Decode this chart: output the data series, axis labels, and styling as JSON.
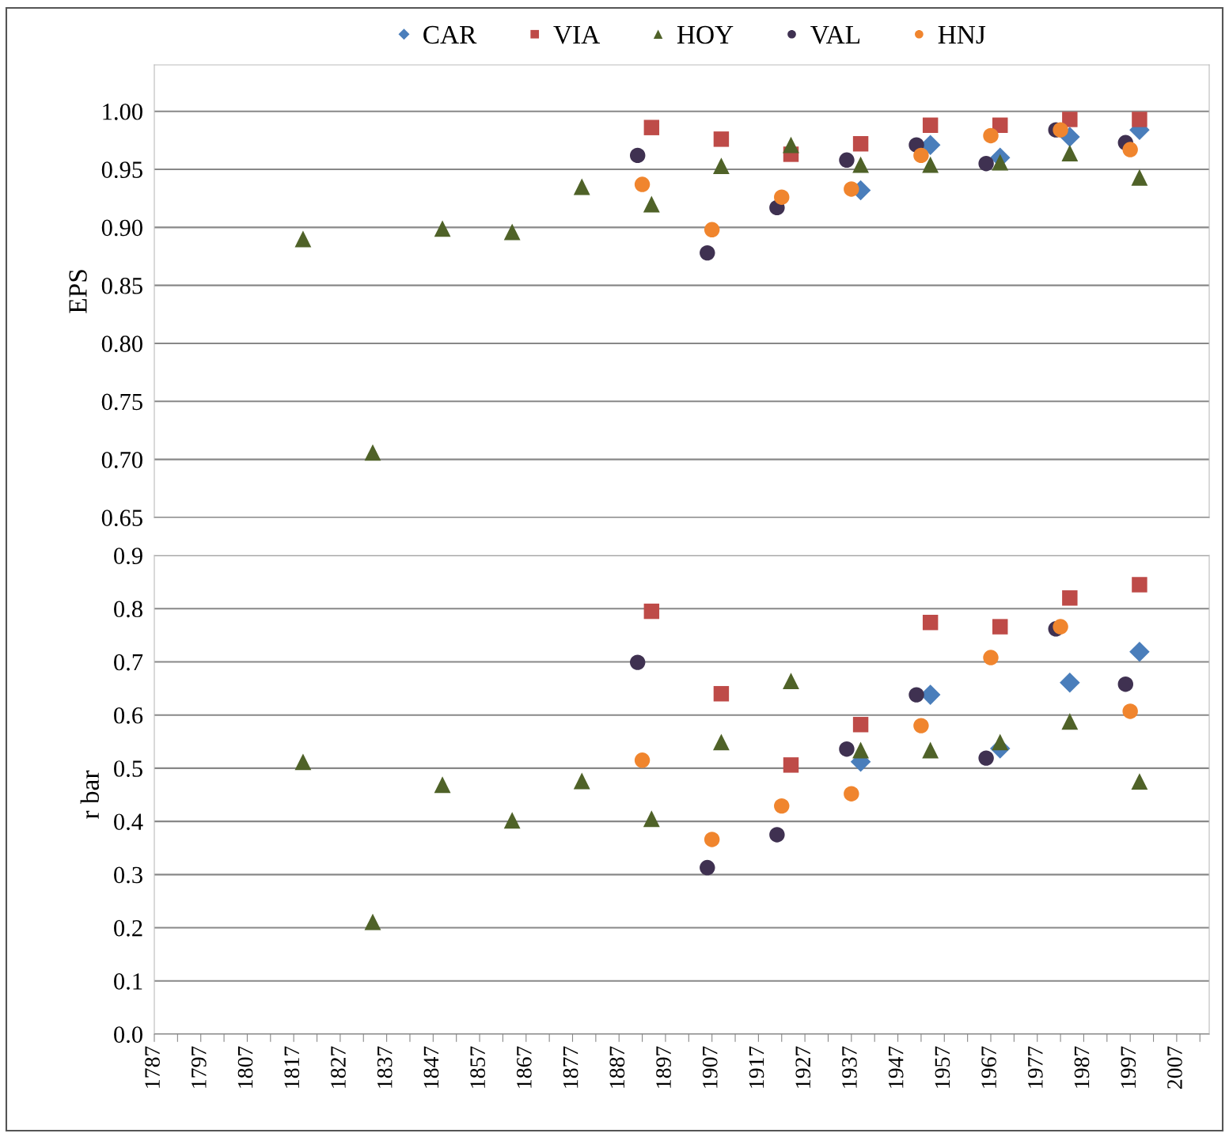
{
  "chart_data": [
    {
      "type": "scatter",
      "ylabel": "EPS",
      "xlim": [
        1787,
        2014
      ],
      "ylim": [
        0.65,
        1.04
      ],
      "yticks": [
        {
          "value": 0.65,
          "label": "0.65"
        },
        {
          "value": 0.7,
          "label": "0.70"
        },
        {
          "value": 0.75,
          "label": "0.75"
        },
        {
          "value": 0.8,
          "label": "0.80"
        },
        {
          "value": 0.85,
          "label": "0.85"
        },
        {
          "value": 0.9,
          "label": "0.90"
        },
        {
          "value": 0.95,
          "label": "0.95"
        },
        {
          "value": 1.0,
          "label": "1.00"
        }
      ],
      "tick_labels": "y",
      "grid": "y",
      "legend": "top",
      "series": [
        {
          "name": "CAR",
          "color": "#4a7ebb",
          "marker": "diamond",
          "x": [
            1939,
            1954,
            1969,
            1984,
            1999
          ],
          "values": [
            0.932,
            0.971,
            0.96,
            0.978,
            0.984
          ]
        },
        {
          "name": "VIA",
          "color": "#be4b48",
          "marker": "square",
          "x": [
            1894,
            1909,
            1924,
            1939,
            1954,
            1969,
            1984,
            1999
          ],
          "values": [
            0.986,
            0.976,
            0.963,
            0.972,
            0.988,
            0.988,
            0.993,
            0.993
          ]
        },
        {
          "name": "HOY",
          "color": "#4f6228",
          "marker": "triangle",
          "x": [
            1819,
            1834,
            1849,
            1864,
            1879,
            1894,
            1909,
            1924,
            1939,
            1954,
            1969,
            1984,
            1999
          ],
          "values": [
            0.89,
            0.706,
            0.899,
            0.896,
            0.935,
            0.92,
            0.953,
            0.971,
            0.954,
            0.954,
            0.956,
            0.964,
            0.943
          ]
        },
        {
          "name": "VAL",
          "color": "#3f3151",
          "marker": "circle",
          "x": [
            1891,
            1906,
            1921,
            1936,
            1951,
            1966,
            1981,
            1996
          ],
          "values": [
            0.962,
            0.878,
            0.917,
            0.958,
            0.971,
            0.955,
            0.984,
            0.973
          ]
        },
        {
          "name": "HNJ",
          "color": "#f0852e",
          "marker": "circle",
          "x": [
            1892,
            1907,
            1922,
            1937,
            1952,
            1967,
            1982,
            1997
          ],
          "values": [
            0.937,
            0.898,
            0.926,
            0.933,
            0.962,
            0.979,
            0.984,
            0.967
          ]
        }
      ]
    },
    {
      "type": "scatter",
      "ylabel": "r bar",
      "xlim": [
        1787,
        2014
      ],
      "ylim": [
        0,
        0.9
      ],
      "xticks": [
        1787,
        {
          "value": 1792,
          "label": null
        },
        1797,
        {
          "value": 1802,
          "label": null
        },
        1807,
        {
          "value": 1812,
          "label": null
        },
        1817,
        {
          "value": 1822,
          "label": null
        },
        1827,
        {
          "value": 1832,
          "label": null
        },
        1837,
        {
          "value": 1842,
          "label": null
        },
        1847,
        {
          "value": 1852,
          "label": null
        },
        1857,
        {
          "value": 1862,
          "label": null
        },
        1867,
        {
          "value": 1872,
          "label": null
        },
        1877,
        {
          "value": 1882,
          "label": null
        },
        1887,
        {
          "value": 1892,
          "label": null
        },
        1897,
        {
          "value": 1902,
          "label": null
        },
        1907,
        {
          "value": 1912,
          "label": null
        },
        1917,
        {
          "value": 1922,
          "label": null
        },
        1927,
        {
          "value": 1932,
          "label": null
        },
        1937,
        {
          "value": 1942,
          "label": null
        },
        1947,
        {
          "value": 1952,
          "label": null
        },
        1957,
        {
          "value": 1962,
          "label": null
        },
        1967,
        {
          "value": 1972,
          "label": null
        },
        1977,
        {
          "value": 1982,
          "label": null
        },
        1987,
        {
          "value": 1992,
          "label": null
        },
        1997,
        {
          "value": 2002,
          "label": null
        },
        2007,
        {
          "value": 2012,
          "label": null
        }
      ],
      "yticks": [
        {
          "value": 0,
          "label": "0.0"
        },
        0.1,
        0.2,
        0.3,
        0.4,
        0.5,
        0.6,
        0.7,
        0.8,
        0.9
      ],
      "grid": "y",
      "series": [
        {
          "name": "CAR",
          "color": "#4a7ebb",
          "marker": "diamond",
          "x": [
            1939,
            1954,
            1969,
            1984,
            1999
          ],
          "values": [
            0.512,
            0.638,
            0.537,
            0.661,
            0.719
          ]
        },
        {
          "name": "VIA",
          "color": "#be4b48",
          "marker": "square",
          "x": [
            1894,
            1909,
            1924,
            1939,
            1954,
            1969,
            1984,
            1999
          ],
          "values": [
            0.795,
            0.64,
            0.506,
            0.582,
            0.774,
            0.766,
            0.82,
            0.845
          ]
        },
        {
          "name": "HOY",
          "color": "#4f6228",
          "marker": "triangle",
          "x": [
            1819,
            1834,
            1849,
            1864,
            1879,
            1894,
            1909,
            1924,
            1939,
            1954,
            1969,
            1984,
            1999
          ],
          "values": [
            0.512,
            0.211,
            0.469,
            0.402,
            0.476,
            0.405,
            0.549,
            0.664,
            0.534,
            0.534,
            0.549,
            0.588,
            0.475
          ]
        },
        {
          "name": "VAL",
          "color": "#3f3151",
          "marker": "circle",
          "x": [
            1891,
            1906,
            1921,
            1936,
            1951,
            1966,
            1981,
            1996
          ],
          "values": [
            0.699,
            0.313,
            0.375,
            0.536,
            0.638,
            0.519,
            0.762,
            0.658
          ]
        },
        {
          "name": "HNJ",
          "color": "#f0852e",
          "marker": "circle",
          "x": [
            1892,
            1907,
            1922,
            1937,
            1952,
            1967,
            1982,
            1997
          ],
          "values": [
            0.515,
            0.366,
            0.429,
            0.452,
            0.58,
            0.708,
            0.766,
            0.607
          ]
        }
      ]
    }
  ]
}
